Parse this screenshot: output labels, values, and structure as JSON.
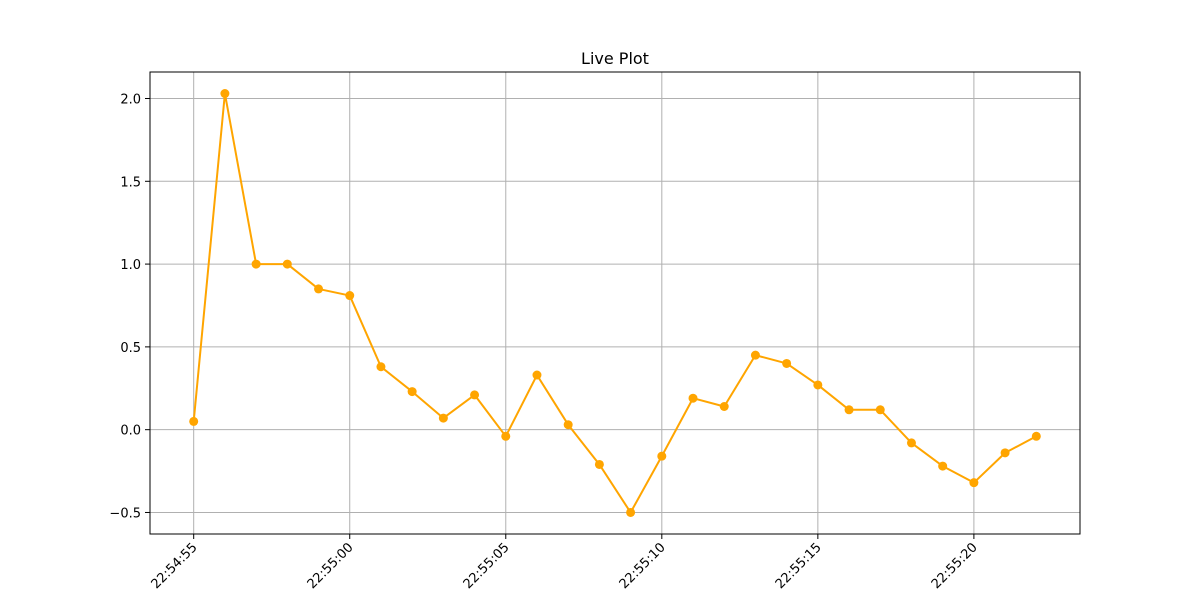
{
  "chart_data": {
    "type": "line",
    "title": "Live Plot",
    "xlabel": "",
    "ylabel": "",
    "x": [
      "22:54:55",
      "22:54:56",
      "22:54:57",
      "22:54:58",
      "22:54:59",
      "22:55:00",
      "22:55:01",
      "22:55:02",
      "22:55:03",
      "22:55:04",
      "22:55:05",
      "22:55:06",
      "22:55:07",
      "22:55:08",
      "22:55:09",
      "22:55:10",
      "22:55:11",
      "22:55:12",
      "22:55:13",
      "22:55:14",
      "22:55:15",
      "22:55:16",
      "22:55:17",
      "22:55:18",
      "22:55:19",
      "22:55:20",
      "22:55:21",
      "22:55:22"
    ],
    "series": [
      {
        "values": [
          0.05,
          2.03,
          1.0,
          1.0,
          0.85,
          0.81,
          0.38,
          0.23,
          0.07,
          0.21,
          -0.04,
          0.33,
          0.03,
          -0.21,
          -0.5,
          -0.16,
          0.19,
          0.14,
          0.45,
          0.4,
          0.27,
          0.12,
          0.12,
          -0.08,
          -0.22,
          -0.32,
          -0.14,
          -0.04
        ],
        "color": "#ffa500",
        "marker": "circle"
      }
    ],
    "xticks": [
      "22:54:55",
      "22:55:00",
      "22:55:05",
      "22:55:10",
      "22:55:15",
      "22:55:20"
    ],
    "yticks": [
      -0.5,
      0.0,
      0.5,
      1.0,
      1.5,
      2.0
    ],
    "ytick_labels": [
      "−0.5",
      "0.0",
      "0.5",
      "1.0",
      "1.5",
      "2.0"
    ],
    "ylim": [
      -0.63,
      2.16
    ],
    "xlim": [
      "22:54:53.6",
      "22:55:23.4"
    ],
    "grid": true,
    "legend": "none"
  }
}
